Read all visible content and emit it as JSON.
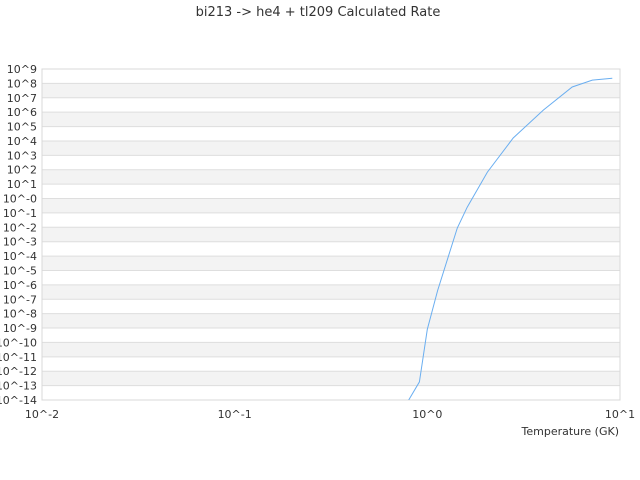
{
  "chart_data": {
    "type": "line",
    "title": "bi213 -> he4 + tl209 Calculated Rate",
    "xlabel": "Temperature (GK)",
    "ylabel": "",
    "x_scale": "log",
    "y_scale": "log",
    "xlim": [
      0.01,
      10
    ],
    "ylim": [
      1e-14,
      1000000000.0
    ],
    "x_tick_labels": [
      "10^-2",
      "10^-1",
      "10^0",
      "10^1"
    ],
    "y_tick_labels": [
      "10^9",
      "10^8",
      "10^7",
      "10^6",
      "10^5",
      "10^4",
      "10^3",
      "10^2",
      "10^1",
      "10^-0",
      "10^-1",
      "10^-2",
      "10^-3",
      "10^-4",
      "10^-5",
      "10^-6",
      "10^-7",
      "10^-8",
      "10^-9",
      "10^-10",
      "10^-11",
      "10^-12",
      "10^-13",
      "10^-14"
    ],
    "grid": true,
    "legend": "none",
    "series": [
      {
        "color": "#6aaef0",
        "x": [
          0.8,
          0.91,
          1.0,
          1.13,
          1.43,
          1.61,
          2.05,
          2.79,
          4.0,
          5.65,
          7.18,
          9.12
        ],
        "y": [
          1e-14,
          1.8e-13,
          8e-10,
          4e-07,
          0.009,
          0.25,
          69,
          16000.0,
          1400000.0,
          56000000.0,
          170000000.0,
          230000000.0
        ]
      }
    ]
  }
}
